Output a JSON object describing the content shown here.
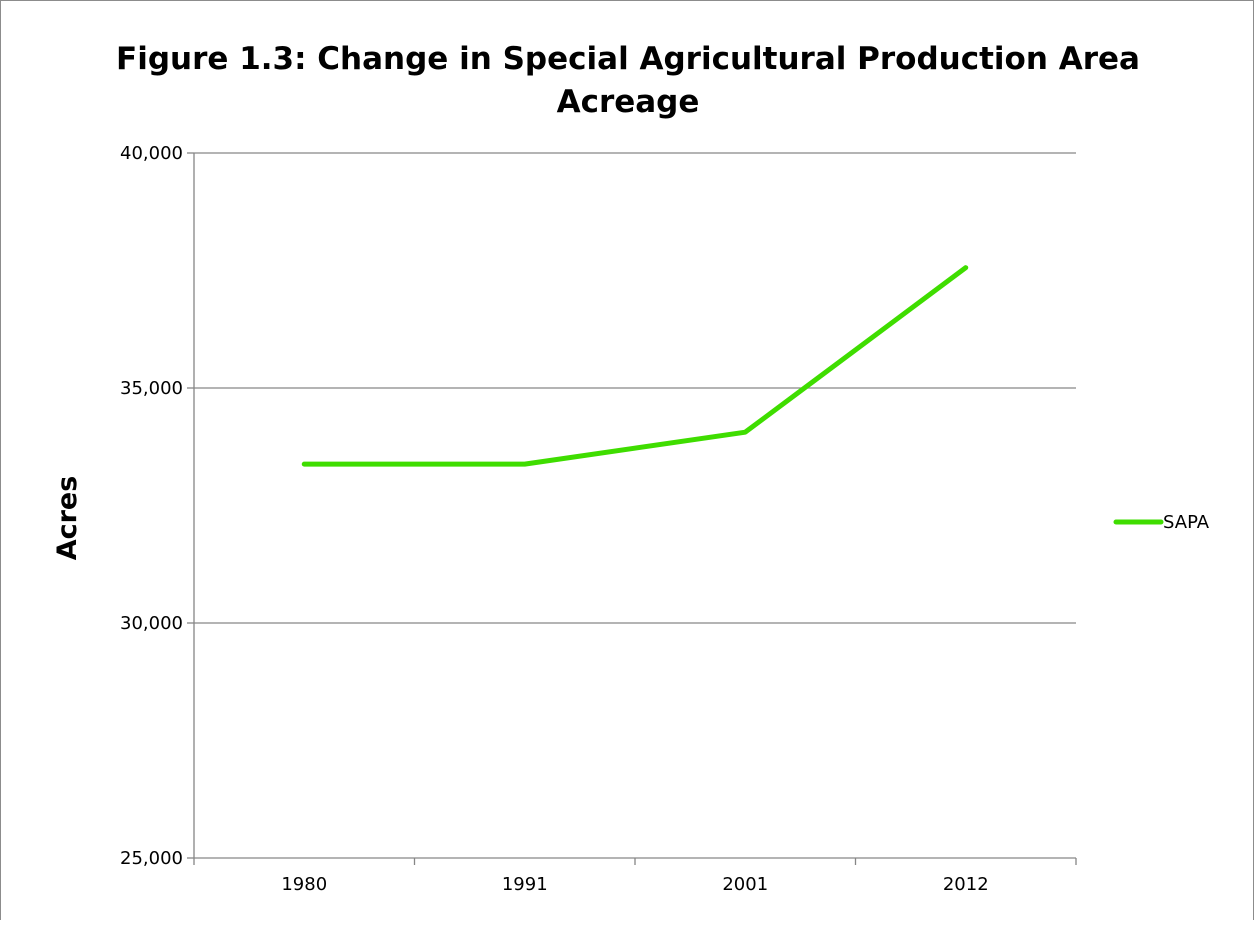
{
  "chart_data": {
    "type": "line",
    "title_lines": [
      "Figure 1.3: Change in Special Agricultural Production Area",
      "Acreage"
    ],
    "xlabel": "",
    "ylabel": "Acres",
    "categories": [
      "1980",
      "1991",
      "2001",
      "2012"
    ],
    "series": [
      {
        "name": "SAPA",
        "color": "#3fdd00",
        "values": [
          33380,
          33380,
          34060,
          37560
        ]
      }
    ],
    "ylim": [
      25000,
      40000
    ],
    "yticks": [
      25000,
      30000,
      35000,
      40000
    ],
    "ytick_labels": [
      "25,000",
      "30,000",
      "35,000",
      "40,000"
    ],
    "grid": true,
    "legend_position": "right"
  }
}
